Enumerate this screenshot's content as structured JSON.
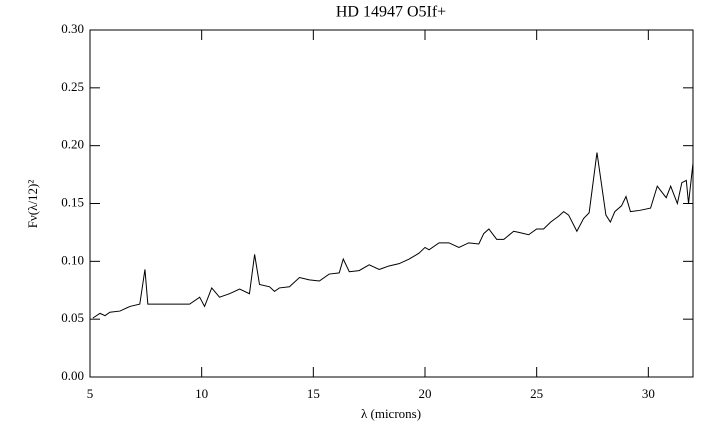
{
  "chart_data": {
    "type": "line",
    "title": "HD 14947 O5If+",
    "x_label": "λ (microns)",
    "y_label": "Fν(λ/12)²",
    "x": [
      5.13,
      5.45,
      5.67,
      5.89,
      6.34,
      6.79,
      7.23,
      7.46,
      7.59,
      8.13,
      8.79,
      9.46,
      9.91,
      10.13,
      10.45,
      10.8,
      11.25,
      11.7,
      12.14,
      12.37,
      12.59,
      13.04,
      13.26,
      13.48,
      13.93,
      14.38,
      14.82,
      15.27,
      15.71,
      16.16,
      16.34,
      16.61,
      17.05,
      17.5,
      17.95,
      18.39,
      18.84,
      19.29,
      19.73,
      20.0,
      20.18,
      20.63,
      21.07,
      21.52,
      21.96,
      22.41,
      22.63,
      22.86,
      23.21,
      23.53,
      23.97,
      24.2,
      24.64,
      25.0,
      25.31,
      25.63,
      25.98,
      26.21,
      26.43,
      26.8,
      27.1,
      27.35,
      27.7,
      28.1,
      28.3,
      28.5,
      28.8,
      29.0,
      29.2,
      29.6,
      30.1,
      30.4,
      30.8,
      31.0,
      31.3,
      31.5,
      31.7,
      31.8,
      32.0
    ],
    "series": [
      {
        "color": "#000000",
        "values": [
          0.051,
          0.055,
          0.053,
          0.056,
          0.057,
          0.061,
          0.063,
          0.093,
          0.063,
          0.063,
          0.063,
          0.063,
          0.069,
          0.061,
          0.077,
          0.069,
          0.072,
          0.076,
          0.072,
          0.106,
          0.08,
          0.078,
          0.074,
          0.077,
          0.078,
          0.086,
          0.084,
          0.083,
          0.089,
          0.09,
          0.102,
          0.091,
          0.092,
          0.097,
          0.093,
          0.096,
          0.098,
          0.102,
          0.107,
          0.112,
          0.11,
          0.116,
          0.116,
          0.112,
          0.116,
          0.115,
          0.124,
          0.128,
          0.119,
          0.119,
          0.126,
          0.125,
          0.123,
          0.128,
          0.128,
          0.134,
          0.139,
          0.143,
          0.14,
          0.126,
          0.137,
          0.142,
          0.194,
          0.14,
          0.134,
          0.143,
          0.148,
          0.156,
          0.143,
          0.144,
          0.146,
          0.165,
          0.155,
          0.165,
          0.15,
          0.168,
          0.17,
          0.15,
          0.185
        ]
      }
    ],
    "xlim": [
      5,
      32
    ],
    "xticks": [
      5,
      10,
      15,
      20,
      25,
      30
    ],
    "ylim": [
      0,
      0.3
    ],
    "yticks": [
      {
        "value": 0,
        "label": "0.00"
      },
      {
        "value": 0.05,
        "label": "0.05"
      },
      {
        "value": 0.1,
        "label": "0.10"
      },
      {
        "value": 0.15,
        "label": "0.15"
      },
      {
        "value": 0.2,
        "label": "0.20"
      },
      {
        "value": 0.25,
        "label": "0.25"
      },
      {
        "value": 0.3,
        "label": "0.30"
      }
    ]
  }
}
